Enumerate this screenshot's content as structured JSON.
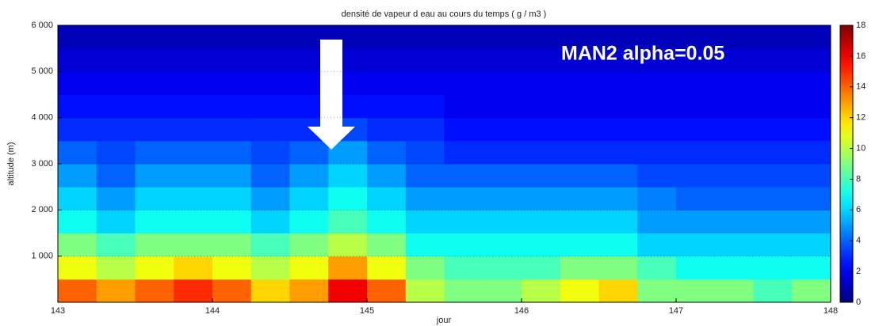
{
  "chart_data": {
    "type": "heatmap",
    "title": "densité de vapeur d eau au cours du temps ( g / m3 )",
    "x_label": "jour",
    "y_label": "altitude (m)",
    "annotation": "MAN2 alpha=0.05",
    "colormap": "jet",
    "xlim": [
      143,
      148
    ],
    "xticks": [
      143,
      144,
      145,
      146,
      147,
      148
    ],
    "ylim": [
      0,
      6000
    ],
    "yticks": [
      {
        "value": 1000,
        "label": "1 000"
      },
      {
        "value": 2000,
        "label": "2 000"
      },
      {
        "value": 3000,
        "label": "3 000"
      },
      {
        "value": 4000,
        "label": "4 000"
      },
      {
        "value": 5000,
        "label": "5 000"
      },
      {
        "value": 6000,
        "label": "6 000"
      }
    ],
    "grid": true,
    "clim": [
      0,
      18
    ],
    "cticks": [
      0,
      2,
      4,
      6,
      8,
      10,
      12,
      14,
      16,
      18
    ],
    "xbins": [
      143,
      143.25,
      143.5,
      143.75,
      144,
      144.25,
      144.5,
      144.75,
      145,
      145.25,
      145.5,
      145.75,
      146,
      146.25,
      146.5,
      146.75,
      147,
      147.25,
      147.5,
      147.75,
      148
    ],
    "ybins": [
      0,
      500,
      1000,
      1500,
      2000,
      2500,
      3000,
      3500,
      4000,
      4500,
      5000,
      5500,
      6000
    ],
    "z": [
      [
        14,
        13,
        14,
        15,
        14,
        12,
        13,
        16,
        14,
        10,
        9,
        9,
        10,
        11,
        12,
        9,
        9,
        9,
        8,
        9
      ],
      [
        11,
        10,
        11,
        12,
        11,
        10,
        11,
        13,
        11,
        9,
        8,
        8,
        8,
        9,
        9,
        8,
        7,
        7,
        7,
        7
      ],
      [
        9,
        8,
        9,
        9,
        9,
        8,
        9,
        10,
        9,
        7,
        7,
        7,
        7,
        7,
        7,
        6,
        6,
        6,
        6,
        6
      ],
      [
        7,
        6,
        7,
        7,
        7,
        6,
        7,
        8,
        7,
        6,
        6,
        6,
        6,
        6,
        6,
        5,
        5,
        5,
        5,
        5
      ],
      [
        6,
        5,
        6,
        6,
        6,
        5,
        6,
        7,
        6,
        5,
        5,
        5,
        5,
        5,
        5,
        4.5,
        4,
        4,
        4,
        4
      ],
      [
        5,
        4,
        5,
        5,
        5,
        4,
        5,
        6,
        5,
        4,
        4,
        4,
        4,
        4,
        4,
        3.5,
        3.5,
        3.5,
        3.5,
        3.5
      ],
      [
        4,
        3.5,
        4,
        4,
        4,
        3.5,
        4,
        5,
        4,
        3.5,
        3,
        3,
        3,
        3,
        3,
        3,
        3,
        3,
        3,
        3
      ],
      [
        3,
        3,
        3,
        3,
        3,
        3,
        3,
        3.5,
        3,
        3,
        2.5,
        2.5,
        2.5,
        2.5,
        2.5,
        2.5,
        2.5,
        2.5,
        2.5,
        2.5
      ],
      [
        2.5,
        2.5,
        2.5,
        2.5,
        2.5,
        2.5,
        2.5,
        2.5,
        2.5,
        2.5,
        2,
        2,
        2,
        2,
        2,
        2,
        2,
        2,
        2,
        2
      ],
      [
        2,
        2,
        2,
        2,
        2,
        2,
        2,
        2,
        2,
        2,
        2,
        2,
        2,
        2,
        2,
        2,
        2,
        2,
        2,
        2
      ],
      [
        1.5,
        1.5,
        1.5,
        1.5,
        1.5,
        1.5,
        1.5,
        1.5,
        1.5,
        1.5,
        1.5,
        1.5,
        1.5,
        1.5,
        1.5,
        1.5,
        1.5,
        1.5,
        1.5,
        1.5
      ],
      [
        1,
        1,
        1,
        1,
        1,
        1,
        1,
        1,
        1,
        1,
        1,
        1,
        1,
        1,
        1,
        1,
        1,
        1,
        1,
        1
      ]
    ]
  }
}
